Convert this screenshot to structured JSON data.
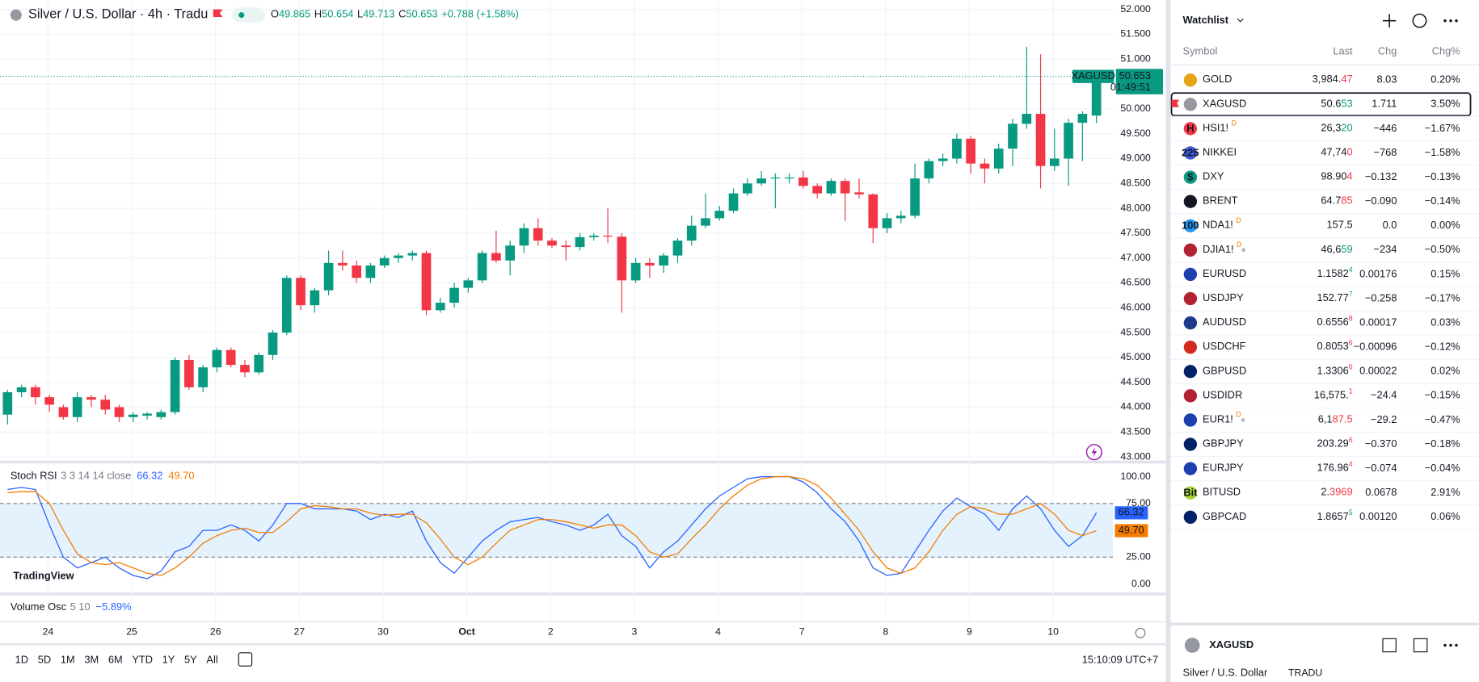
{
  "header": {
    "title": "Silver / U.S. Dollar · 4h · Tradu",
    "ohlc": [
      {
        "k": "O",
        "v": "49.865"
      },
      {
        "k": "H",
        "v": "50.654"
      },
      {
        "k": "L",
        "v": "49.713"
      },
      {
        "k": "C",
        "v": "50.653"
      }
    ],
    "change": "+0.788 (+1.58%)"
  },
  "chart_data": [
    {
      "type": "candlestick",
      "color_up": "#089981",
      "color_down": "#f23645",
      "grid": true,
      "ylim": [
        43,
        52
      ],
      "yticks": [
        {
          "value": 43,
          "label": "43.000"
        },
        {
          "value": 43.5,
          "label": "43.500"
        },
        {
          "value": 44,
          "label": "44.000"
        },
        {
          "value": 44.5,
          "label": "44.500"
        },
        {
          "value": 45,
          "label": "45.000"
        },
        {
          "value": 45.5,
          "label": "45.500"
        },
        {
          "value": 46,
          "label": "46.000"
        },
        {
          "value": 46.5,
          "label": "46.500"
        },
        {
          "value": 47,
          "label": "47.000"
        },
        {
          "value": 47.5,
          "label": "47.500"
        },
        {
          "value": 48,
          "label": "48.000"
        },
        {
          "value": 48.5,
          "label": "48.500"
        },
        {
          "value": 49,
          "label": "49.000"
        },
        {
          "value": 49.5,
          "label": "49.500"
        },
        {
          "value": 50,
          "label": "50.000"
        },
        {
          "value": 50.5,
          "label": "50.500"
        },
        {
          "value": 51,
          "label": "51.000"
        },
        {
          "value": 51.5,
          "label": "51.500"
        },
        {
          "value": 52,
          "label": "52.000"
        }
      ],
      "time_labels": [
        "24",
        "25",
        "26",
        "27",
        "30",
        "Oct",
        "2",
        "3",
        "4",
        "7",
        "8",
        "9",
        "10"
      ],
      "open": [
        43.85,
        44.3,
        44.4,
        44.2,
        44.0,
        43.8,
        44.2,
        44.15,
        44.0,
        43.8,
        43.83,
        43.8,
        43.9,
        44.95,
        44.4,
        44.8,
        45.15,
        44.85,
        44.7,
        45.05,
        45.5,
        46.6,
        46.05,
        46.35,
        46.9,
        46.85,
        46.6,
        46.85,
        47.0,
        47.05,
        47.1,
        45.95,
        46.1,
        46.4,
        46.55,
        47.1,
        46.95,
        47.25,
        47.6,
        47.35,
        47.25,
        47.22,
        47.42,
        47.45,
        47.43,
        46.55,
        46.9,
        46.85,
        47.05,
        47.35,
        47.65,
        47.8,
        47.95,
        48.3,
        48.5,
        48.6,
        48.6,
        48.62,
        48.45,
        48.3,
        48.55,
        48.32,
        48.28,
        47.6,
        47.8,
        47.85,
        48.6,
        48.95,
        49.0,
        49.4,
        48.9,
        48.8,
        49.2,
        49.7,
        49.9,
        48.85,
        49.0,
        49.72,
        49.865
      ],
      "high": [
        44.35,
        44.45,
        44.45,
        44.25,
        44.05,
        44.3,
        44.25,
        44.25,
        44.05,
        43.9,
        43.9,
        43.95,
        45.0,
        45.05,
        44.85,
        45.2,
        45.2,
        44.95,
        45.1,
        45.55,
        46.65,
        46.65,
        46.4,
        47.15,
        47.15,
        46.95,
        46.9,
        47.05,
        47.1,
        47.15,
        47.15,
        46.2,
        46.5,
        46.6,
        47.15,
        47.55,
        47.35,
        47.7,
        47.8,
        47.4,
        47.35,
        47.5,
        47.5,
        48.0,
        47.5,
        47.0,
        47.0,
        47.1,
        47.4,
        47.85,
        48.3,
        48.05,
        48.4,
        48.6,
        48.75,
        48.7,
        48.7,
        48.75,
        48.5,
        48.6,
        48.6,
        48.6,
        48.3,
        47.9,
        47.95,
        48.9,
        49.0,
        49.1,
        49.5,
        49.45,
        49.0,
        49.3,
        49.8,
        51.25,
        51.1,
        49.6,
        49.8,
        49.95,
        50.654
      ],
      "low": [
        43.65,
        44.2,
        44.05,
        43.9,
        43.75,
        43.7,
        44.0,
        43.85,
        43.7,
        43.7,
        43.75,
        43.75,
        43.85,
        44.35,
        44.3,
        44.7,
        44.8,
        44.6,
        44.65,
        44.95,
        45.45,
        45.95,
        45.9,
        46.25,
        46.75,
        46.5,
        46.5,
        46.8,
        46.9,
        46.95,
        45.85,
        45.9,
        46.0,
        46.3,
        46.5,
        46.9,
        46.65,
        47.1,
        47.25,
        47.2,
        46.95,
        47.15,
        47.35,
        47.3,
        45.9,
        46.5,
        46.6,
        46.7,
        46.9,
        47.25,
        47.6,
        47.75,
        47.9,
        48.25,
        48.45,
        48.0,
        48.5,
        48.4,
        48.2,
        48.25,
        47.75,
        48.2,
        47.3,
        47.5,
        47.7,
        47.8,
        48.5,
        48.85,
        48.9,
        48.7,
        48.5,
        48.7,
        48.85,
        49.6,
        48.4,
        48.75,
        48.45,
        48.95,
        49.713
      ],
      "close": [
        44.3,
        44.4,
        44.2,
        44.05,
        43.8,
        44.2,
        44.15,
        43.95,
        43.8,
        43.85,
        43.87,
        43.9,
        44.95,
        44.4,
        44.8,
        45.15,
        44.85,
        44.7,
        45.05,
        45.5,
        46.6,
        46.05,
        46.35,
        46.9,
        46.85,
        46.6,
        46.85,
        47.0,
        47.05,
        47.1,
        45.95,
        46.1,
        46.4,
        46.55,
        47.1,
        46.95,
        47.25,
        47.6,
        47.35,
        47.25,
        47.22,
        47.42,
        47.45,
        47.43,
        46.55,
        46.9,
        46.85,
        47.05,
        47.35,
        47.65,
        47.8,
        47.95,
        48.3,
        48.5,
        48.6,
        48.62,
        48.62,
        48.45,
        48.3,
        48.55,
        48.3,
        48.28,
        47.6,
        47.8,
        47.85,
        48.6,
        48.95,
        49.0,
        49.4,
        48.9,
        48.8,
        49.2,
        49.7,
        49.9,
        48.85,
        49.0,
        49.72,
        49.9,
        50.653
      ],
      "last_price": {
        "label": "XAGUSD",
        "value": 50.653,
        "countdown": "01:49:51",
        "color": "#089981"
      }
    },
    {
      "type": "line",
      "title": "Stoch RSI",
      "params": "3 3 14 14 close",
      "ylim": [
        0,
        100
      ],
      "yticks": [
        {
          "value": 100,
          "label": "100.00"
        },
        {
          "value": 75,
          "label": "75.00"
        },
        {
          "value": 25,
          "label": "25.00"
        },
        {
          "value": 0,
          "label": "0.00"
        }
      ],
      "band_color": "#e3f2fd",
      "series": [
        {
          "color": "#2962ff",
          "value_label": "66.32",
          "values": [
            88,
            90,
            88,
            55,
            25,
            15,
            20,
            25,
            15,
            8,
            5,
            12,
            30,
            35,
            50,
            50,
            55,
            50,
            40,
            55,
            75,
            75,
            70,
            70,
            70,
            68,
            60,
            65,
            62,
            68,
            40,
            20,
            10,
            25,
            40,
            50,
            58,
            60,
            62,
            58,
            55,
            50,
            55,
            65,
            45,
            35,
            15,
            30,
            40,
            55,
            70,
            82,
            90,
            98,
            100,
            100,
            100,
            95,
            85,
            70,
            58,
            40,
            15,
            8,
            10,
            30,
            50,
            68,
            80,
            72,
            65,
            50,
            70,
            82,
            70,
            50,
            35,
            45,
            66.32
          ]
        },
        {
          "color": "#f57c00",
          "value_label": "49.70",
          "values": [
            85,
            86,
            86,
            75,
            50,
            28,
            20,
            18,
            20,
            15,
            10,
            8,
            15,
            25,
            38,
            45,
            50,
            52,
            48,
            48,
            58,
            70,
            73,
            72,
            70,
            70,
            66,
            64,
            65,
            65,
            57,
            42,
            25,
            18,
            25,
            38,
            50,
            55,
            60,
            60,
            58,
            55,
            52,
            55,
            55,
            45,
            30,
            25,
            28,
            42,
            55,
            70,
            82,
            92,
            98,
            100,
            100,
            98,
            92,
            80,
            65,
            50,
            30,
            15,
            10,
            15,
            30,
            50,
            65,
            72,
            70,
            65,
            65,
            70,
            75,
            65,
            50,
            45,
            49.7
          ]
        }
      ]
    }
  ],
  "volume_osc": {
    "title": "Volume Osc",
    "params": "5 10",
    "value": -5.89,
    "value_label": "−5.89%"
  },
  "brand": "TradingView",
  "toolbar": {
    "ranges": [
      "1D",
      "5D",
      "1M",
      "3M",
      "6M",
      "YTD",
      "1Y",
      "5Y",
      "All"
    ],
    "clock": "15:10:09 UTC+7"
  },
  "watchlist": {
    "title": "Watchlist",
    "columns": [
      "Symbol",
      "Last",
      "Chg",
      "Chg%"
    ],
    "rows": [
      {
        "symbol": "GOLD",
        "icon_color": "#e8a317",
        "last": {
          "text": "3,984.",
          "hl": "47",
          "hl_color": "#f23645"
        },
        "chg": "8.03",
        "pct": "0.20%",
        "dir": "up"
      },
      {
        "symbol": "XAGUSD",
        "icon_color": "#9598a1",
        "last": {
          "text": "50.6",
          "hl": "53",
          "hl_color": "#089981"
        },
        "chg": "1.711",
        "pct": "3.50%",
        "dir": "up",
        "selected": true
      },
      {
        "symbol": "HSI1!",
        "icon_color": "#f23645",
        "icon_text": "H",
        "badge": "D",
        "last": {
          "text": "26,3",
          "hl": "20",
          "hl_color": "#089981"
        },
        "chg": "−446",
        "pct": "−1.67%",
        "dir": "down"
      },
      {
        "symbol": "NIKKEI",
        "icon_color": "#3b5bdb",
        "icon_text": "225",
        "last": {
          "text": "47,74",
          "hl": "0",
          "hl_color": "#f23645"
        },
        "chg": "−768",
        "pct": "−1.58%",
        "dir": "down"
      },
      {
        "symbol": "DXY",
        "icon_color": "#089981",
        "icon_text": "$",
        "last": {
          "text": "98.90",
          "hl": "4",
          "hl_color": "#f23645"
        },
        "chg": "−0.132",
        "pct": "−0.13%",
        "dir": "down"
      },
      {
        "symbol": "BRENT",
        "icon_color": "#131722",
        "last": {
          "text": "64.7",
          "hl": "85",
          "hl_color": "#f23645"
        },
        "chg": "−0.090",
        "pct": "−0.14%",
        "dir": "down"
      },
      {
        "symbol": "NDA1!",
        "icon_color": "#2196f3",
        "icon_text": "100",
        "badge": "D",
        "last": {
          "text": "157.5"
        },
        "chg": "0.0",
        "pct": "0.00%",
        "dir": "flat"
      },
      {
        "symbol": "DJIA1!",
        "icon_color": "#b22234",
        "badge": "D",
        "dot": true,
        "last": {
          "text": "46,6",
          "hl": "59",
          "hl_color": "#089981"
        },
        "chg": "−234",
        "pct": "−0.50%",
        "dir": "down"
      },
      {
        "symbol": "EURUSD",
        "icon_color": "#1e40af",
        "last": {
          "text": "1.1582",
          "hl": "4",
          "hl_color": "#089981",
          "sup": true
        },
        "chg": "0.00176",
        "pct": "0.15%",
        "dir": "up"
      },
      {
        "symbol": "USDJPY",
        "icon_color": "#b22234",
        "last": {
          "text": "152.77",
          "hl": "7",
          "hl_color": "#089981",
          "sup": true
        },
        "chg": "−0.258",
        "pct": "−0.17%",
        "dir": "down"
      },
      {
        "symbol": "AUDUSD",
        "icon_color": "#1e3a8a",
        "last": {
          "text": "0.6556",
          "hl": "8",
          "hl_color": "#f23645",
          "sup": true
        },
        "chg": "0.00017",
        "pct": "0.03%",
        "dir": "up"
      },
      {
        "symbol": "USDCHF",
        "icon_color": "#d52b1e",
        "last": {
          "text": "0.8053",
          "hl": "6",
          "hl_color": "#f23645",
          "sup": true
        },
        "chg": "−0.00096",
        "pct": "−0.12%",
        "dir": "down"
      },
      {
        "symbol": "GBPUSD",
        "icon_color": "#012169",
        "last": {
          "text": "1.3306",
          "hl": "6",
          "hl_color": "#f23645",
          "sup": true
        },
        "chg": "0.00022",
        "pct": "0.02%",
        "dir": "up"
      },
      {
        "symbol": "USDIDR",
        "icon_color": "#b22234",
        "last": {
          "text": "16,575.",
          "hl": "1",
          "hl_color": "#f23645",
          "sup": true
        },
        "chg": "−24.4",
        "pct": "−0.15%",
        "dir": "down"
      },
      {
        "symbol": "EUR1!",
        "icon_color": "#1e40af",
        "badge": "D",
        "dot": true,
        "last": {
          "text": "6,1",
          "hl": "87.5",
          "hl_color": "#f23645"
        },
        "chg": "−29.2",
        "pct": "−0.47%",
        "dir": "down"
      },
      {
        "symbol": "GBPJPY",
        "icon_color": "#012169",
        "last": {
          "text": "203.29",
          "hl": "6",
          "hl_color": "#f23645",
          "sup": true
        },
        "chg": "−0.370",
        "pct": "−0.18%",
        "dir": "down"
      },
      {
        "symbol": "EURJPY",
        "icon_color": "#1e40af",
        "last": {
          "text": "176.96",
          "hl": "4",
          "hl_color": "#f23645",
          "sup": true
        },
        "chg": "−0.074",
        "pct": "−0.04%",
        "dir": "down"
      },
      {
        "symbol": "BITUSD",
        "icon_color": "#a3d635",
        "icon_text": "Bit",
        "last": {
          "text": "2.",
          "hl": "3969",
          "hl_color": "#f23645"
        },
        "chg": "0.0678",
        "pct": "2.91%",
        "dir": "up"
      },
      {
        "symbol": "GBPCAD",
        "icon_color": "#012169",
        "last": {
          "text": "1.8657",
          "hl": "5",
          "hl_color": "#089981",
          "sup": true
        },
        "chg": "0.00120",
        "pct": "0.06%",
        "dir": "up"
      }
    ]
  },
  "details": {
    "symbol": "XAGUSD",
    "name": "Silver / U.S. Dollar",
    "broker": "TRADU"
  }
}
